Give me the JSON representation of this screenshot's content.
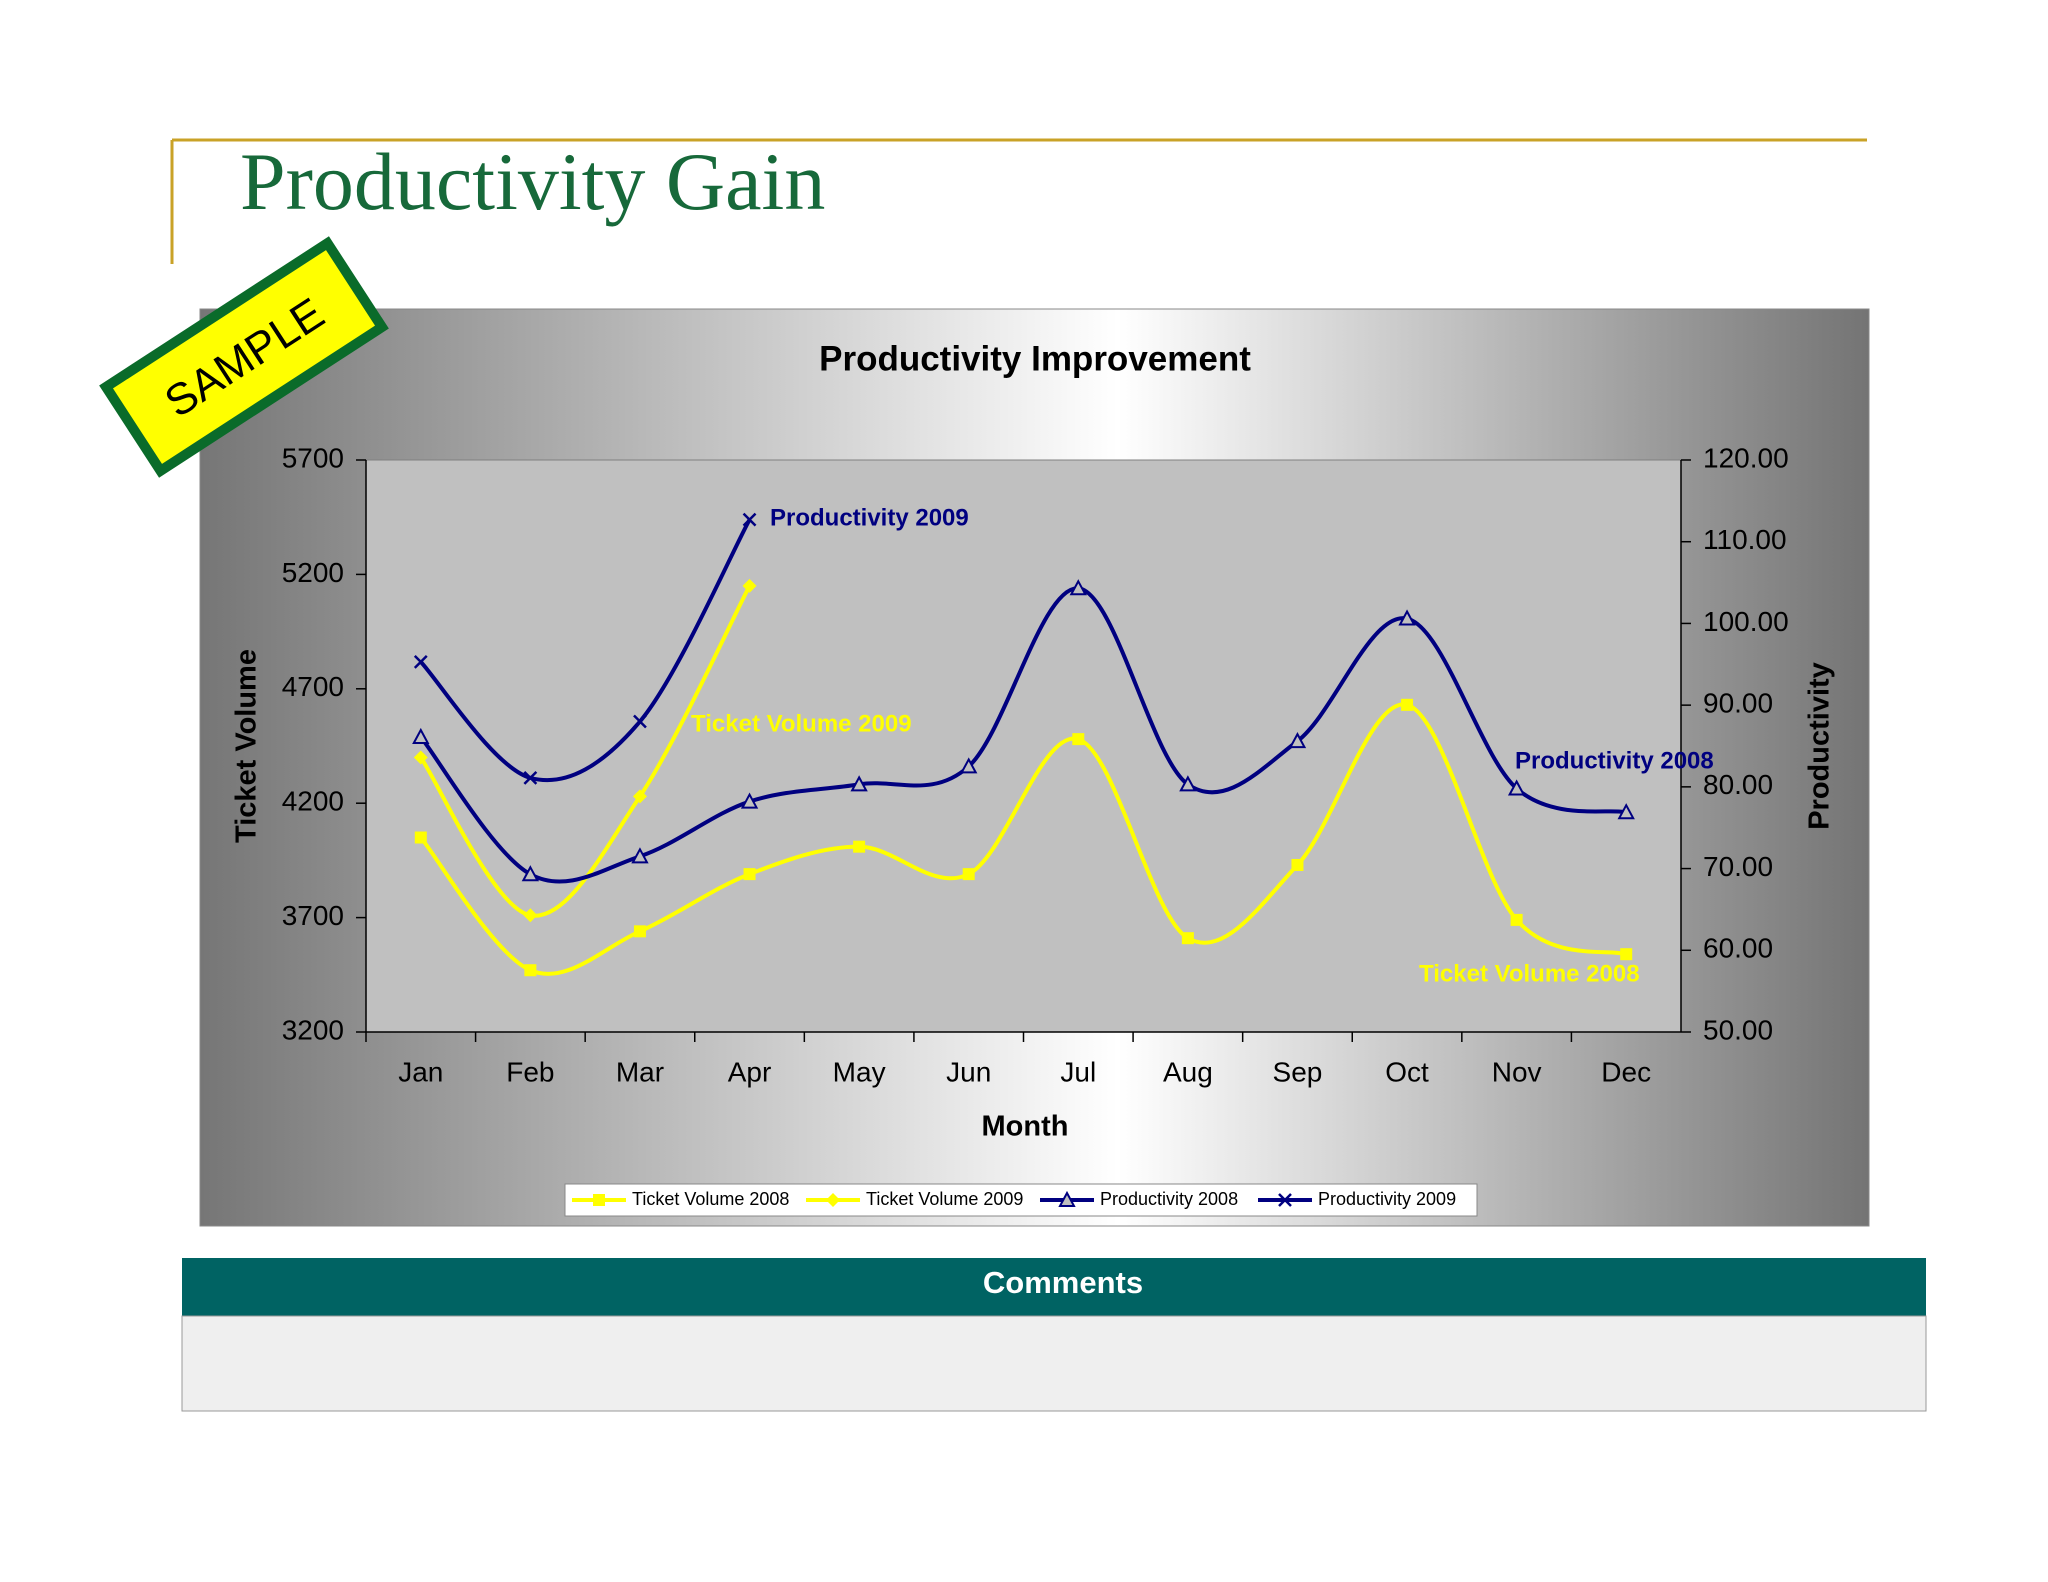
{
  "page": {
    "title": "Productivity Gain",
    "stamp": "SAMPLE",
    "comments_heading": "Comments"
  },
  "chart_data": {
    "type": "line",
    "title": "Productivity Improvement",
    "categories": [
      "Jan",
      "Feb",
      "Mar",
      "Apr",
      "May",
      "Jun",
      "Jul",
      "Aug",
      "Sep",
      "Oct",
      "Nov",
      "Dec"
    ],
    "xlabel": "Month",
    "ylabel": "Ticket Volume",
    "y2label": "Productivity",
    "ylim": [
      3200,
      5700
    ],
    "yticks": [
      3200,
      3700,
      4200,
      4700,
      5200,
      5700
    ],
    "y2lim": [
      50,
      120
    ],
    "y2ticks": [
      {
        "value": 50,
        "label": "50.00"
      },
      {
        "value": 60,
        "label": "60.00"
      },
      {
        "value": 70,
        "label": "70.00"
      },
      {
        "value": 80,
        "label": "80.00"
      },
      {
        "value": 90,
        "label": "90.00"
      },
      {
        "value": 100,
        "label": "100.00"
      },
      {
        "value": 110,
        "label": "110.00"
      },
      {
        "value": 120,
        "label": "120.00"
      }
    ],
    "series": [
      {
        "name": "Ticket Volume 2008",
        "color": "#ffff00",
        "marker": "square",
        "values": [
          4050,
          3470,
          3640,
          3890,
          4010,
          3890,
          4480,
          3610,
          3930,
          4630,
          3690,
          3540
        ]
      },
      {
        "name": "Ticket Volume 2009",
        "color": "#ffff00",
        "marker": "diamond",
        "values": [
          4400,
          3710,
          4230,
          5150,
          null,
          null,
          null,
          null,
          null,
          null,
          null,
          null
        ]
      },
      {
        "name": "Productivity 2008",
        "color": "#000080",
        "marker": "triangle",
        "axis": "y2",
        "values": [
          86.1,
          69.3,
          71.5,
          78.2,
          80.3,
          82.5,
          104.3,
          80.3,
          85.6,
          100.6,
          79.8,
          76.9
        ]
      },
      {
        "name": "Productivity 2009",
        "color": "#000080",
        "marker": "x",
        "axis": "y2",
        "values": [
          95.3,
          81.1,
          88.0,
          112.7,
          null,
          null,
          null,
          null,
          null,
          null,
          null,
          null
        ]
      }
    ],
    "annotations": [
      {
        "text": "Productivity 2009",
        "color": "#000080"
      },
      {
        "text": "Ticket Volume 2009",
        "color": "#ffff00"
      },
      {
        "text": "Productivity 2008",
        "color": "#000080"
      },
      {
        "text": "Ticket Volume 2008",
        "color": "#ffff00"
      }
    ]
  }
}
